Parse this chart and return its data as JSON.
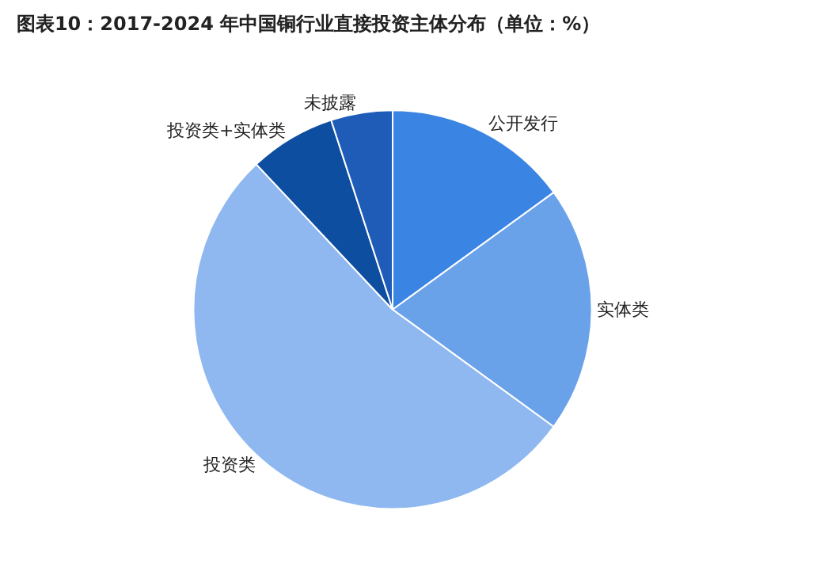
{
  "chart_data": {
    "type": "pie",
    "title": "图表10：2017-2024 年中国铜行业直接投资主体分布（单位：%）",
    "categories": [
      "公开发行",
      "实体类",
      "投资类",
      "投资类+实体类",
      "未披露"
    ],
    "values": [
      15,
      20,
      53,
      7,
      5
    ],
    "colors": [
      "#3a84e3",
      "#6aa2ea",
      "#8fb8f0",
      "#0e4ea0",
      "#1f5cb8"
    ],
    "legend": false
  }
}
